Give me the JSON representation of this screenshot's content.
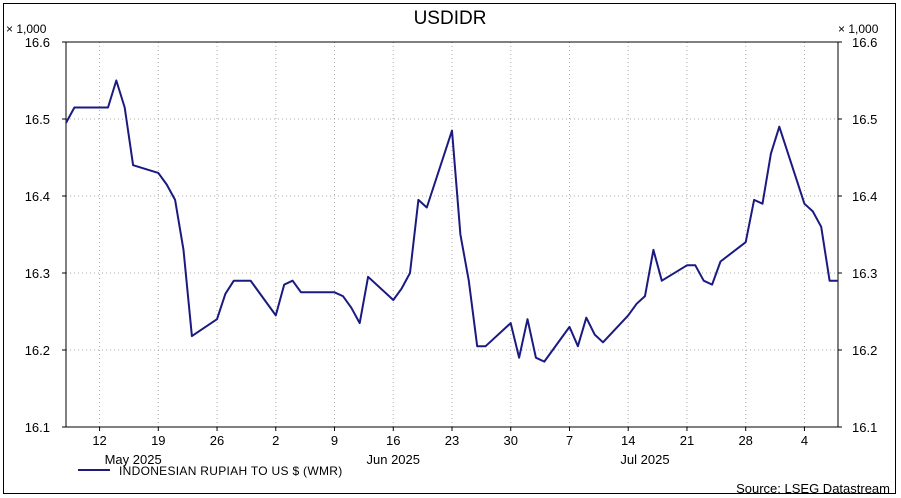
{
  "chart_data": {
    "type": "line",
    "title": "USDIDR",
    "multiplier_left": "× 1,000",
    "multiplier_right": "× 1,000",
    "yticks": [
      "16.1",
      "16.2",
      "16.3",
      "16.4",
      "16.5",
      "16.6"
    ],
    "ylim": [
      16.1,
      16.6
    ],
    "grid": true,
    "x_day_labels": [
      "12",
      "19",
      "26",
      "2",
      "9",
      "16",
      "23",
      "30",
      "7",
      "14",
      "21",
      "28",
      "4"
    ],
    "x_month_labels": [
      "May 2025",
      "Jun 2025",
      "Jul 2025"
    ],
    "legend_position": "bottom-left",
    "source": "Source: LSEG Datastream",
    "color": "#1a1a80",
    "series": [
      {
        "name": "INDONESIAN RUPIAH TO US $ (WMR)",
        "x": [
          "2025-05-08",
          "2025-05-09",
          "2025-05-12",
          "2025-05-13",
          "2025-05-14",
          "2025-05-15",
          "2025-05-16",
          "2025-05-19",
          "2025-05-20",
          "2025-05-21",
          "2025-05-22",
          "2025-05-23",
          "2025-05-26",
          "2025-05-27",
          "2025-05-28",
          "2025-05-29",
          "2025-05-30",
          "2025-06-02",
          "2025-06-03",
          "2025-06-04",
          "2025-06-05",
          "2025-06-06",
          "2025-06-09",
          "2025-06-10",
          "2025-06-11",
          "2025-06-12",
          "2025-06-13",
          "2025-06-16",
          "2025-06-17",
          "2025-06-18",
          "2025-06-19",
          "2025-06-20",
          "2025-06-23",
          "2025-06-24",
          "2025-06-25",
          "2025-06-26",
          "2025-06-27",
          "2025-06-30",
          "2025-07-01",
          "2025-07-02",
          "2025-07-03",
          "2025-07-04",
          "2025-07-07",
          "2025-07-08",
          "2025-07-09",
          "2025-07-10",
          "2025-07-11",
          "2025-07-14",
          "2025-07-15",
          "2025-07-16",
          "2025-07-17",
          "2025-07-18",
          "2025-07-21",
          "2025-07-22",
          "2025-07-23",
          "2025-07-24",
          "2025-07-25",
          "2025-07-28",
          "2025-07-29",
          "2025-07-30",
          "2025-07-31",
          "2025-08-01",
          "2025-08-04",
          "2025-08-05",
          "2025-08-06",
          "2025-08-07",
          "2025-08-08"
        ],
        "values": [
          16.495,
          16.515,
          16.515,
          16.515,
          16.55,
          16.515,
          16.44,
          16.43,
          16.415,
          16.395,
          16.33,
          16.218,
          16.24,
          16.273,
          16.29,
          16.29,
          16.29,
          16.245,
          16.285,
          16.29,
          16.275,
          16.275,
          16.275,
          16.27,
          16.255,
          16.235,
          16.295,
          16.265,
          16.28,
          16.3,
          16.395,
          16.385,
          16.485,
          16.35,
          16.29,
          16.205,
          16.205,
          16.235,
          16.19,
          16.24,
          16.19,
          16.185,
          16.23,
          16.205,
          16.242,
          16.22,
          16.21,
          16.245,
          16.26,
          16.27,
          16.33,
          16.29,
          16.31,
          16.31,
          16.29,
          16.285,
          16.315,
          16.34,
          16.395,
          16.39,
          16.455,
          16.49,
          16.39,
          16.38,
          16.36,
          16.29,
          16.29
        ]
      }
    ]
  }
}
